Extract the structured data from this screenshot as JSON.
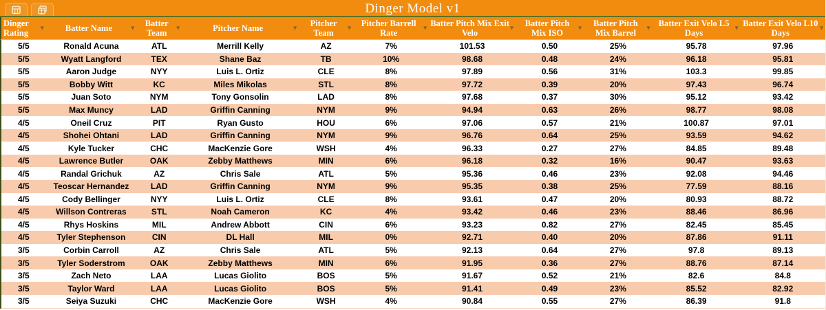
{
  "window": {
    "title": "Dinger Model v1",
    "tabs": [
      {
        "name": "sheet-tab-table",
        "icon": "table-grid-icon"
      },
      {
        "name": "sheet-tab-copy",
        "icon": "copy-sheet-icon"
      }
    ]
  },
  "colors": {
    "header_orange": "#F28C0E",
    "row_shade_peach": "#F8CBAD",
    "row_white": "#FFFFFF",
    "accent_olive_line": "#5E7121",
    "left_edge_dark_olive": "#3E4E16",
    "header_text": "#FFFFFF",
    "data_text": "#000000"
  },
  "table": {
    "columns": [
      {
        "label": "Dinger Rating"
      },
      {
        "label": "Batter Name"
      },
      {
        "label": "Batter Team"
      },
      {
        "label": "Pitcher Name"
      },
      {
        "label": "Pitcher Team"
      },
      {
        "label": "Pitcher Barrell Rate"
      },
      {
        "label": "Batter Pitch Mix Exit Velo"
      },
      {
        "label": "Batter Pitch Mix ISO"
      },
      {
        "label": "Batter Pitch Mix Barrel"
      },
      {
        "label": "Batter Exit Velo L5 Days"
      },
      {
        "label": "Batter Exit Velo L10 Days"
      }
    ],
    "rows": [
      [
        "5/5",
        "Ronald Acuna",
        "ATL",
        "Merrill Kelly",
        "AZ",
        "7%",
        "101.53",
        "0.50",
        "25%",
        "95.78",
        "97.96"
      ],
      [
        "5/5",
        "Wyatt Langford",
        "TEX",
        "Shane Baz",
        "TB",
        "10%",
        "98.68",
        "0.48",
        "24%",
        "96.18",
        "95.81"
      ],
      [
        "5/5",
        "Aaron Judge",
        "NYY",
        "Luis L. Ortiz",
        "CLE",
        "8%",
        "97.89",
        "0.56",
        "31%",
        "103.3",
        "99.85"
      ],
      [
        "5/5",
        "Bobby Witt",
        "KC",
        "Miles Mikolas",
        "STL",
        "8%",
        "97.72",
        "0.39",
        "20%",
        "97.43",
        "96.74"
      ],
      [
        "5/5",
        "Juan Soto",
        "NYM",
        "Tony Gonsolin",
        "LAD",
        "8%",
        "97.68",
        "0.37",
        "30%",
        "95.12",
        "93.42"
      ],
      [
        "5/5",
        "Max Muncy",
        "LAD",
        "Griffin Canning",
        "NYM",
        "9%",
        "94.94",
        "0.63",
        "26%",
        "98.77",
        "98.08"
      ],
      [
        "4/5",
        "Oneil Cruz",
        "PIT",
        "Ryan Gusto",
        "HOU",
        "6%",
        "97.06",
        "0.57",
        "21%",
        "100.87",
        "97.01"
      ],
      [
        "4/5",
        "Shohei Ohtani",
        "LAD",
        "Griffin Canning",
        "NYM",
        "9%",
        "96.76",
        "0.64",
        "25%",
        "93.59",
        "94.62"
      ],
      [
        "4/5",
        "Kyle Tucker",
        "CHC",
        "MacKenzie Gore",
        "WSH",
        "4%",
        "96.33",
        "0.27",
        "27%",
        "84.85",
        "89.48"
      ],
      [
        "4/5",
        "Lawrence Butler",
        "OAK",
        "Zebby Matthews",
        "MIN",
        "6%",
        "96.18",
        "0.32",
        "16%",
        "90.47",
        "93.63"
      ],
      [
        "4/5",
        "Randal Grichuk",
        "AZ",
        "Chris Sale",
        "ATL",
        "5%",
        "95.36",
        "0.46",
        "23%",
        "92.08",
        "94.46"
      ],
      [
        "4/5",
        "Teoscar Hernandez",
        "LAD",
        "Griffin Canning",
        "NYM",
        "9%",
        "95.35",
        "0.38",
        "25%",
        "77.59",
        "88.16"
      ],
      [
        "4/5",
        "Cody Bellinger",
        "NYY",
        "Luis L. Ortiz",
        "CLE",
        "8%",
        "93.61",
        "0.47",
        "20%",
        "80.93",
        "88.72"
      ],
      [
        "4/5",
        "Willson Contreras",
        "STL",
        "Noah Cameron",
        "KC",
        "4%",
        "93.42",
        "0.46",
        "23%",
        "88.46",
        "86.96"
      ],
      [
        "4/5",
        "Rhys Hoskins",
        "MIL",
        "Andrew Abbott",
        "CIN",
        "6%",
        "93.23",
        "0.82",
        "27%",
        "82.45",
        "85.45"
      ],
      [
        "4/5",
        "Tyler Stephenson",
        "CIN",
        "DL Hall",
        "MIL",
        "0%",
        "92.71",
        "0.40",
        "20%",
        "87.86",
        "91.11"
      ],
      [
        "3/5",
        "Corbin Carroll",
        "AZ",
        "Chris Sale",
        "ATL",
        "5%",
        "92.13",
        "0.64",
        "27%",
        "97.8",
        "89.13"
      ],
      [
        "3/5",
        "Tyler Soderstrom",
        "OAK",
        "Zebby Matthews",
        "MIN",
        "6%",
        "91.95",
        "0.36",
        "27%",
        "88.76",
        "87.14"
      ],
      [
        "3/5",
        "Zach Neto",
        "LAA",
        "Lucas Giolito",
        "BOS",
        "5%",
        "91.67",
        "0.52",
        "21%",
        "82.6",
        "84.8"
      ],
      [
        "3/5",
        "Taylor Ward",
        "LAA",
        "Lucas Giolito",
        "BOS",
        "5%",
        "91.41",
        "0.49",
        "23%",
        "85.52",
        "82.92"
      ],
      [
        "3/5",
        "Seiya Suzuki",
        "CHC",
        "MacKenzie Gore",
        "WSH",
        "4%",
        "90.84",
        "0.55",
        "27%",
        "86.39",
        "91.8"
      ]
    ]
  }
}
